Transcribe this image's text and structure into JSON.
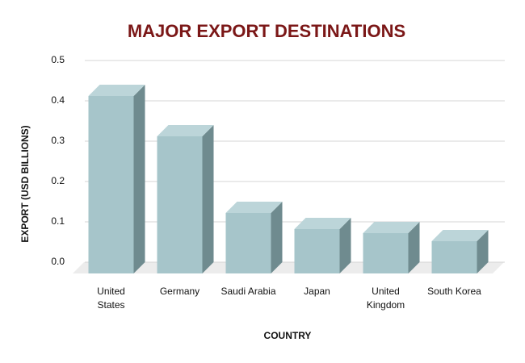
{
  "chart_data": {
    "type": "bar3d",
    "title": "MAJOR EXPORT DESTINATIONS",
    "xlabel": "COUNTRY",
    "ylabel": "EXPORT (USD BILLIONS)",
    "categories": [
      "United States",
      "Germany",
      "Saudi Arabia",
      "Japan",
      "United Kingdom",
      "South Korea"
    ],
    "values": [
      0.44,
      0.34,
      0.15,
      0.11,
      0.1,
      0.08
    ],
    "color": "#a6c5ca",
    "ylim": [
      0,
      0.5
    ],
    "yticks": [
      {
        "value": 0,
        "label": "0.0"
      },
      0.1,
      0.2,
      0.3,
      0.4,
      0.5
    ],
    "grid": true
  }
}
